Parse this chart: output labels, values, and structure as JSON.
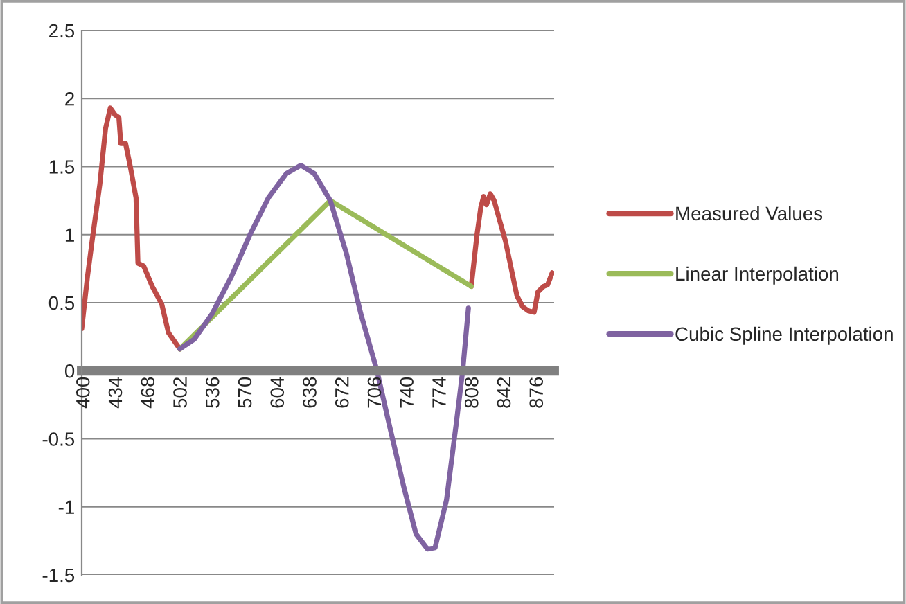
{
  "chart_data": {
    "type": "line",
    "series": [
      {
        "name": "Measured Values",
        "color": "#be4b48",
        "x": [
          397,
          403,
          408,
          416,
          422,
          427,
          432,
          436,
          438,
          443,
          448,
          454,
          456,
          462,
          471,
          481,
          488,
          496,
          500
        ],
        "values": [
          0.31,
          0.69,
          0.96,
          1.37,
          1.78,
          1.93,
          1.88,
          1.86,
          1.67,
          1.67,
          1.5,
          1.27,
          0.79,
          0.77,
          0.62,
          0.49,
          0.28,
          0.2,
          0.16
        ]
      },
      {
        "color": "#be4b48",
        "x": [
          806,
          812,
          816,
          819,
          822,
          826,
          830,
          836,
          842,
          848,
          854,
          860,
          866,
          872,
          876,
          882,
          886,
          891
        ],
        "values": [
          0.62,
          1.0,
          1.2,
          1.28,
          1.22,
          1.3,
          1.25,
          1.1,
          0.95,
          0.75,
          0.55,
          0.47,
          0.44,
          0.43,
          0.58,
          0.62,
          0.63,
          0.72
        ]
      },
      {
        "name": "Linear Interpolation",
        "color": "#9bbb59",
        "x": [
          500,
          658,
          806
        ],
        "values": [
          0.16,
          1.25,
          0.62
        ]
      },
      {
        "name": "Cubic Spline Interpolation",
        "color": "#7f63a1",
        "x": [
          500,
          515,
          534,
          554,
          573,
          593,
          612,
          627,
          641,
          658,
          675,
          690,
          707,
          720,
          735,
          748,
          760,
          768,
          780,
          790,
          797,
          803
        ],
        "values": [
          0.16,
          0.23,
          0.42,
          0.69,
          0.99,
          1.27,
          1.45,
          1.51,
          1.45,
          1.25,
          0.86,
          0.42,
          0,
          -0.4,
          -0.85,
          -1.2,
          -1.31,
          -1.3,
          -0.95,
          -0.4,
          0,
          0.46
        ]
      }
    ],
    "xlim": [
      397,
      893
    ],
    "xticks": [
      400,
      434,
      468,
      502,
      536,
      570,
      604,
      638,
      672,
      706,
      740,
      774,
      808,
      842,
      876
    ],
    "ylim": [
      -1.5,
      2.5
    ],
    "yticks": [
      -1.5,
      -1,
      -0.5,
      0,
      0.5,
      1,
      1.5,
      2,
      2.5
    ],
    "grid": "y",
    "legend": "right",
    "line_style": "solid",
    "marker": "none"
  }
}
